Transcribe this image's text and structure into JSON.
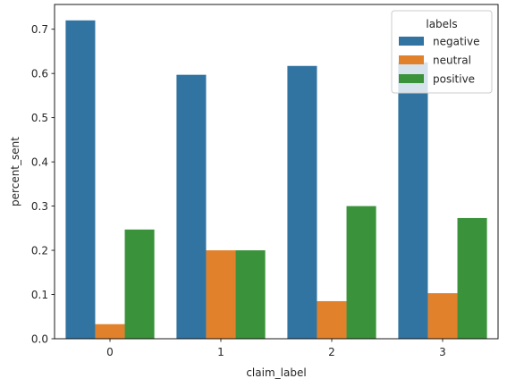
{
  "chart_data": {
    "type": "bar",
    "categories": [
      "0",
      "1",
      "2",
      "3"
    ],
    "series": [
      {
        "name": "negative",
        "color": "#3274a1",
        "values": [
          0.72,
          0.597,
          0.617,
          0.625
        ]
      },
      {
        "name": "neutral",
        "color": "#e1812c",
        "values": [
          0.033,
          0.2,
          0.085,
          0.103
        ]
      },
      {
        "name": "positive",
        "color": "#3a923a",
        "values": [
          0.247,
          0.2,
          0.3,
          0.273
        ]
      }
    ],
    "xlabel": "claim_label",
    "ylabel": "percent_sent",
    "ylim": [
      0,
      0.756
    ],
    "yticks": [
      0.0,
      0.1,
      0.2,
      0.3,
      0.4,
      0.5,
      0.6,
      0.7
    ],
    "ytick_labels": [
      "0.0",
      "0.1",
      "0.2",
      "0.3",
      "0.4",
      "0.5",
      "0.6",
      "0.7"
    ],
    "legend": {
      "title": "labels",
      "placement": "top-right"
    },
    "grid": false
  }
}
